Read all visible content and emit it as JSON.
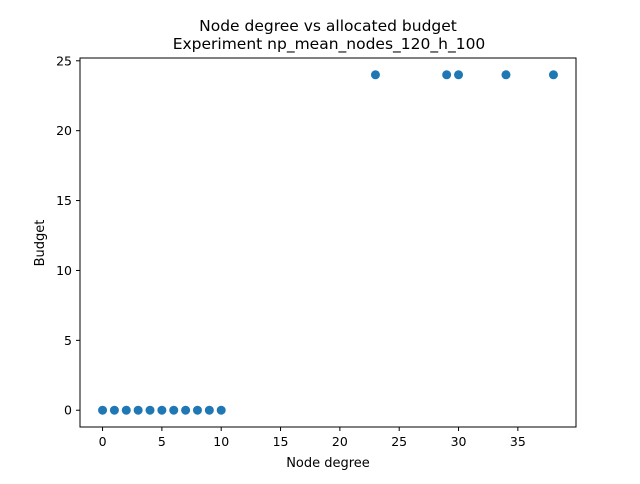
{
  "chart_data": {
    "type": "scatter",
    "title": "Node degree vs allocated budget",
    "subtitle": "Experiment np_mean_nodes_120_h_100",
    "xlabel": "Node degree",
    "ylabel": "Budget",
    "xlim": [
      -1.9,
      39.9
    ],
    "ylim": [
      -1.2,
      25.2
    ],
    "xticks": [
      0,
      5,
      10,
      15,
      20,
      25,
      30,
      35
    ],
    "yticks": [
      0,
      5,
      10,
      15,
      20,
      25
    ],
    "grid": false,
    "legend": "none",
    "series": [
      {
        "color": "#1f77b4",
        "x": [
          0,
          1,
          2,
          3,
          4,
          5,
          6,
          7,
          8,
          9,
          10,
          23,
          29,
          30,
          34,
          38
        ],
        "y": [
          0,
          0,
          0,
          0,
          0,
          0,
          0,
          0,
          0,
          0,
          0,
          24,
          24,
          24,
          24,
          24
        ]
      }
    ]
  }
}
